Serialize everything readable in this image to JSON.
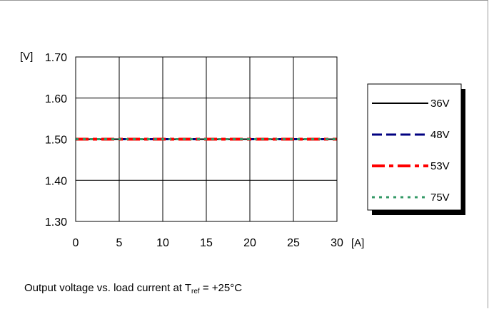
{
  "chart_data": {
    "type": "line",
    "x": [
      0,
      5,
      10,
      15,
      20,
      25,
      30
    ],
    "xlim": [
      0,
      30
    ],
    "ylim": [
      1.3,
      1.7
    ],
    "x_ticks": [
      "0",
      "5",
      "10",
      "15",
      "20",
      "25",
      "30"
    ],
    "y_ticks": [
      "1.30",
      "1.40",
      "1.50",
      "1.60",
      "1.70"
    ],
    "x_unit": "[A]",
    "y_unit": "[V]",
    "grid": true,
    "legend_position": "right",
    "series": [
      {
        "name": "36V",
        "color": "#000000",
        "style": "solid",
        "values": [
          1.5,
          1.5,
          1.5,
          1.5,
          1.5,
          1.5,
          1.5
        ]
      },
      {
        "name": "48V",
        "color": "#000080",
        "style": "dashed",
        "values": [
          1.5,
          1.5,
          1.5,
          1.5,
          1.5,
          1.5,
          1.5
        ]
      },
      {
        "name": "53V",
        "color": "#ff0000",
        "style": "dash-dot",
        "values": [
          1.5,
          1.5,
          1.5,
          1.5,
          1.5,
          1.5,
          1.5
        ]
      },
      {
        "name": "75V",
        "color": "#339966",
        "style": "dotted",
        "values": [
          1.5,
          1.5,
          1.5,
          1.5,
          1.5,
          1.5,
          1.5
        ]
      }
    ]
  },
  "caption": {
    "prefix": "Output voltage vs. load current at T",
    "subscript": "ref",
    "suffix": " = +25°C"
  }
}
